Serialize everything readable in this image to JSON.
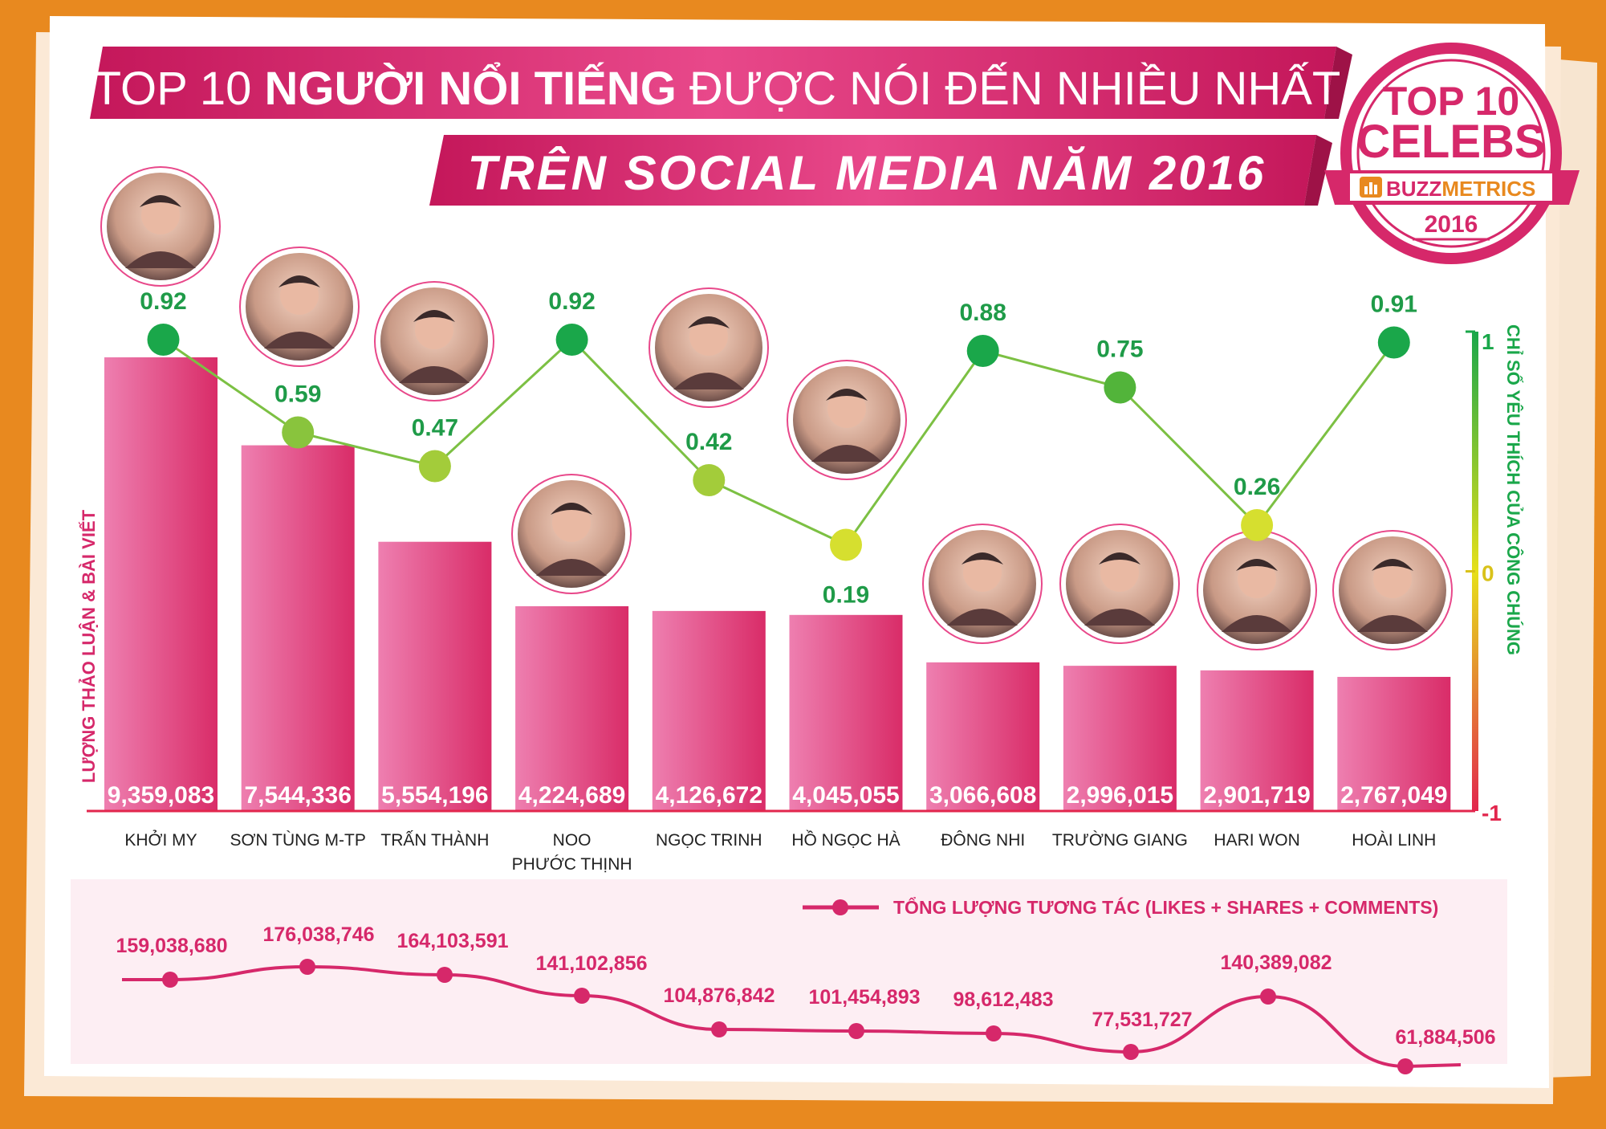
{
  "title": {
    "line1_a": "TOP 10 ",
    "line1_b": "NGƯỜI NỔI TIẾNG",
    "line1_c": " ĐƯỢC NÓI ĐẾN NHIỀU NHẤT",
    "line2": "TRÊN SOCIAL MEDIA NĂM 2016"
  },
  "badge": {
    "top": "TOP 10",
    "celebs": "CELEBS",
    "brand_a": "BUZZ",
    "brand_b": "METRICS",
    "year": "2016"
  },
  "colors": {
    "background": "#e8891f",
    "magenta": "#d6286a",
    "bar_light": "#ee7fb0",
    "bar_dark": "#d92c68",
    "green": "#1aa74a",
    "value_green": "#1f9b48",
    "red": "#e2264d"
  },
  "chart_data": [
    {
      "type": "bar",
      "ylabel": "LƯỢNG THẢO LUẬN & BÀI VIẾT",
      "categories": [
        [
          "KHỞI MY"
        ],
        [
          "SƠN TÙNG M-TP"
        ],
        [
          "TRẤN THÀNH"
        ],
        [
          "NOO",
          "PHƯỚC THỊNH"
        ],
        [
          "NGỌC TRINH"
        ],
        [
          "HỒ NGỌC HÀ"
        ],
        [
          "ĐÔNG NHI"
        ],
        [
          "TRƯỜNG GIANG"
        ],
        [
          "HARI WON"
        ],
        [
          "HOÀI LINH"
        ]
      ],
      "values": [
        9359083,
        7544336,
        5554196,
        4224689,
        4126672,
        4045055,
        3066608,
        2996015,
        2901719,
        2767049
      ],
      "value_labels": [
        "9,359,083",
        "7,544,336",
        "5,554,196",
        "4,224,689",
        "4,126,672",
        "4,045,055",
        "3,066,608",
        "2,996,015",
        "2,901,719",
        "2,767,049"
      ],
      "ylim": [
        0,
        9359083
      ]
    },
    {
      "type": "line",
      "y2label": "CHỈ SỐ YÊU THÍCH CỦA CÔNG CHÚNG",
      "values": [
        0.92,
        0.59,
        0.47,
        0.92,
        0.42,
        0.19,
        0.88,
        0.75,
        0.26,
        0.91
      ],
      "value_labels": [
        "0.92",
        "0.59",
        "0.47",
        "0.92",
        "0.42",
        "0.19",
        "0.88",
        "0.75",
        "0.26",
        "0.91"
      ],
      "ylim": [
        -1,
        1
      ],
      "tick_labels": [
        "1",
        "0",
        "-1"
      ]
    },
    {
      "type": "line",
      "legend": "TỔNG LƯỢNG TƯƠNG TÁC (LIKES + SHARES + COMMENTS)",
      "values": [
        159038680,
        176038746,
        164103591,
        141102856,
        104876842,
        101454893,
        98612483,
        77531727,
        140389082,
        61884506
      ],
      "value_labels": [
        "159,038,680",
        "176,038,746",
        "164,103,591",
        "141,102,856",
        "104,876,842",
        "101,454,893",
        "98,612,483",
        "77,531,727",
        "140,389,082",
        "61,884,506"
      ]
    }
  ],
  "avatar_icons": [
    "portrait-icon",
    "portrait-icon",
    "portrait-icon",
    "portrait-icon",
    "portrait-icon",
    "portrait-icon",
    "portrait-icon",
    "portrait-icon",
    "portrait-icon",
    "portrait-icon"
  ]
}
